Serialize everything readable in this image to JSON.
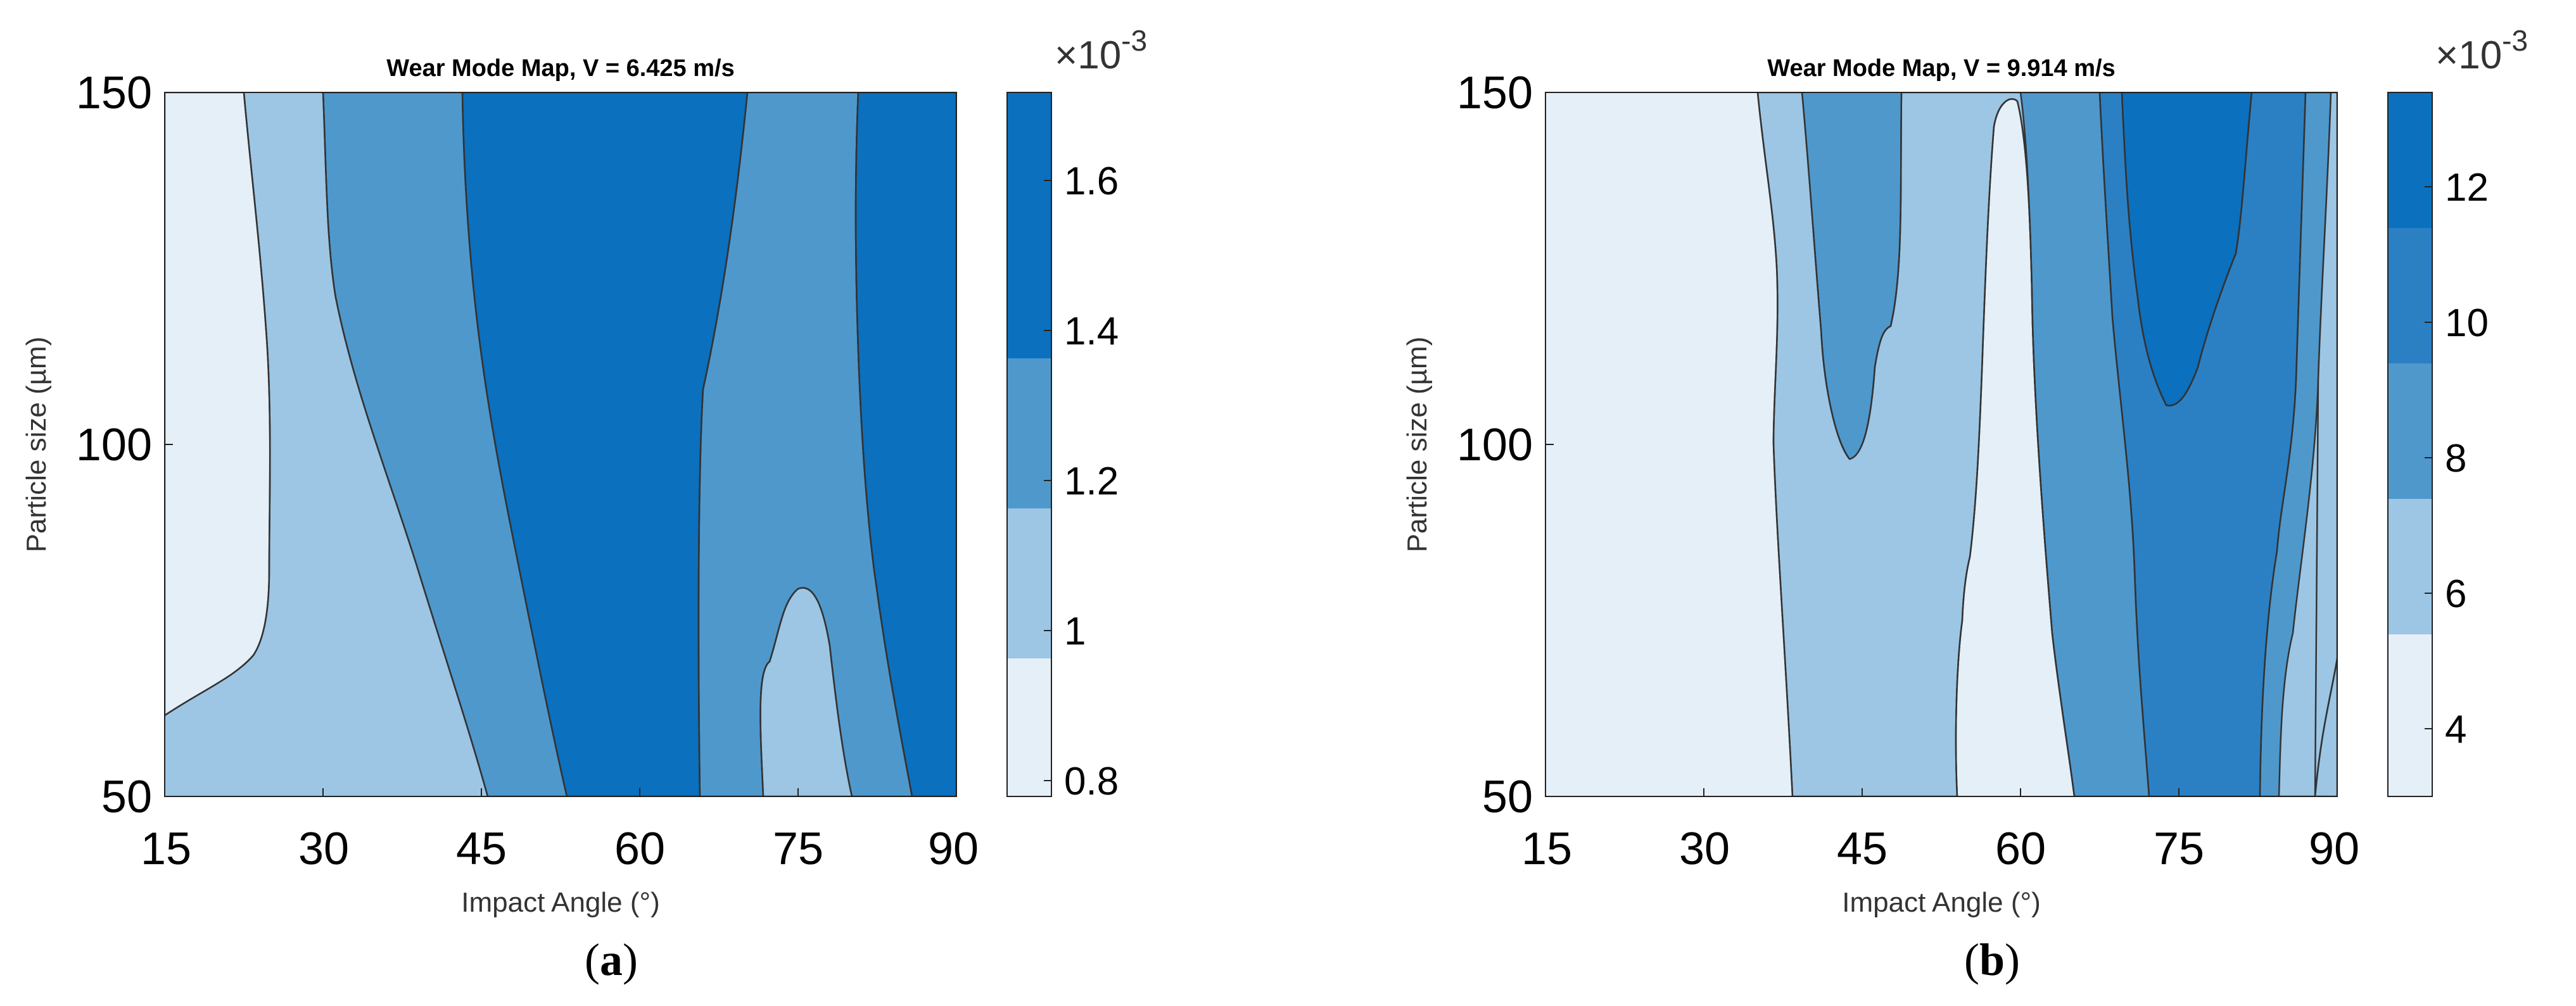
{
  "chart_data": [
    {
      "type": "heatmap",
      "title": "Wear Mode Map, V = 6.425 m/s",
      "xlabel": "Impact Angle (°)",
      "ylabel": "Particle size (µm)",
      "xlim": [
        15,
        90
      ],
      "ylim": [
        50,
        150
      ],
      "xticks": [
        "15",
        "30",
        "45",
        "60",
        "75",
        "90"
      ],
      "yticks": [
        "50",
        "100",
        "150"
      ],
      "colorbar": {
        "ticks": [
          "0.8",
          "1",
          "1.2",
          "1.4",
          "1.6"
        ],
        "range": [
          0.78,
          1.72
        ],
        "exponent_prefix": "×10",
        "exponent": "-3"
      },
      "levels": [
        0.78,
        1.0,
        1.2,
        1.4,
        1.6,
        1.72
      ],
      "bands": [
        {
          "level": 0.9,
          "x_at": [
            [
              15,
              63
            ],
            [
              18,
              65
            ],
            [
              20,
              67
            ],
            [
              22,
              69
            ],
            [
              23,
              71
            ],
            [
              24,
              74
            ],
            [
              24.5,
              78
            ],
            [
              25,
              90
            ],
            [
              25,
              110
            ],
            [
              24.5,
              130
            ],
            [
              24,
              140
            ],
            [
              23.5,
              150
            ]
          ]
        },
        {
          "level": 1.1,
          "x_at": [
            [
              45.5,
              50
            ],
            [
              44,
              55
            ],
            [
              42,
              62
            ],
            [
              40,
              70
            ],
            [
              38,
              80
            ],
            [
              36.5,
              90
            ],
            [
              35,
              100
            ],
            [
              33,
              110
            ],
            [
              32,
              120
            ],
            [
              31.5,
              130
            ],
            [
              31,
              140
            ],
            [
              30,
              150
            ]
          ]
        }
      ],
      "caption": "(a)"
    },
    {
      "type": "heatmap",
      "title": "Wear Mode Map, V = 9.914 m/s",
      "xlabel": "Impact Angle (°)",
      "ylabel": "Particle size (µm)",
      "xlim": [
        15,
        90
      ],
      "ylim": [
        50,
        150
      ],
      "xticks": [
        "15",
        "30",
        "45",
        "60",
        "75",
        "90"
      ],
      "yticks": [
        "50",
        "100",
        "150"
      ],
      "colorbar": {
        "ticks": [
          "4",
          "6",
          "8",
          "10",
          "12"
        ],
        "range": [
          2.9,
          13.3
        ],
        "exponent_prefix": "×10",
        "exponent": "-3"
      },
      "levels": [
        2.9,
        5.0,
        7.0,
        9.0,
        11.0,
        13.3
      ],
      "caption": "(b)"
    }
  ]
}
